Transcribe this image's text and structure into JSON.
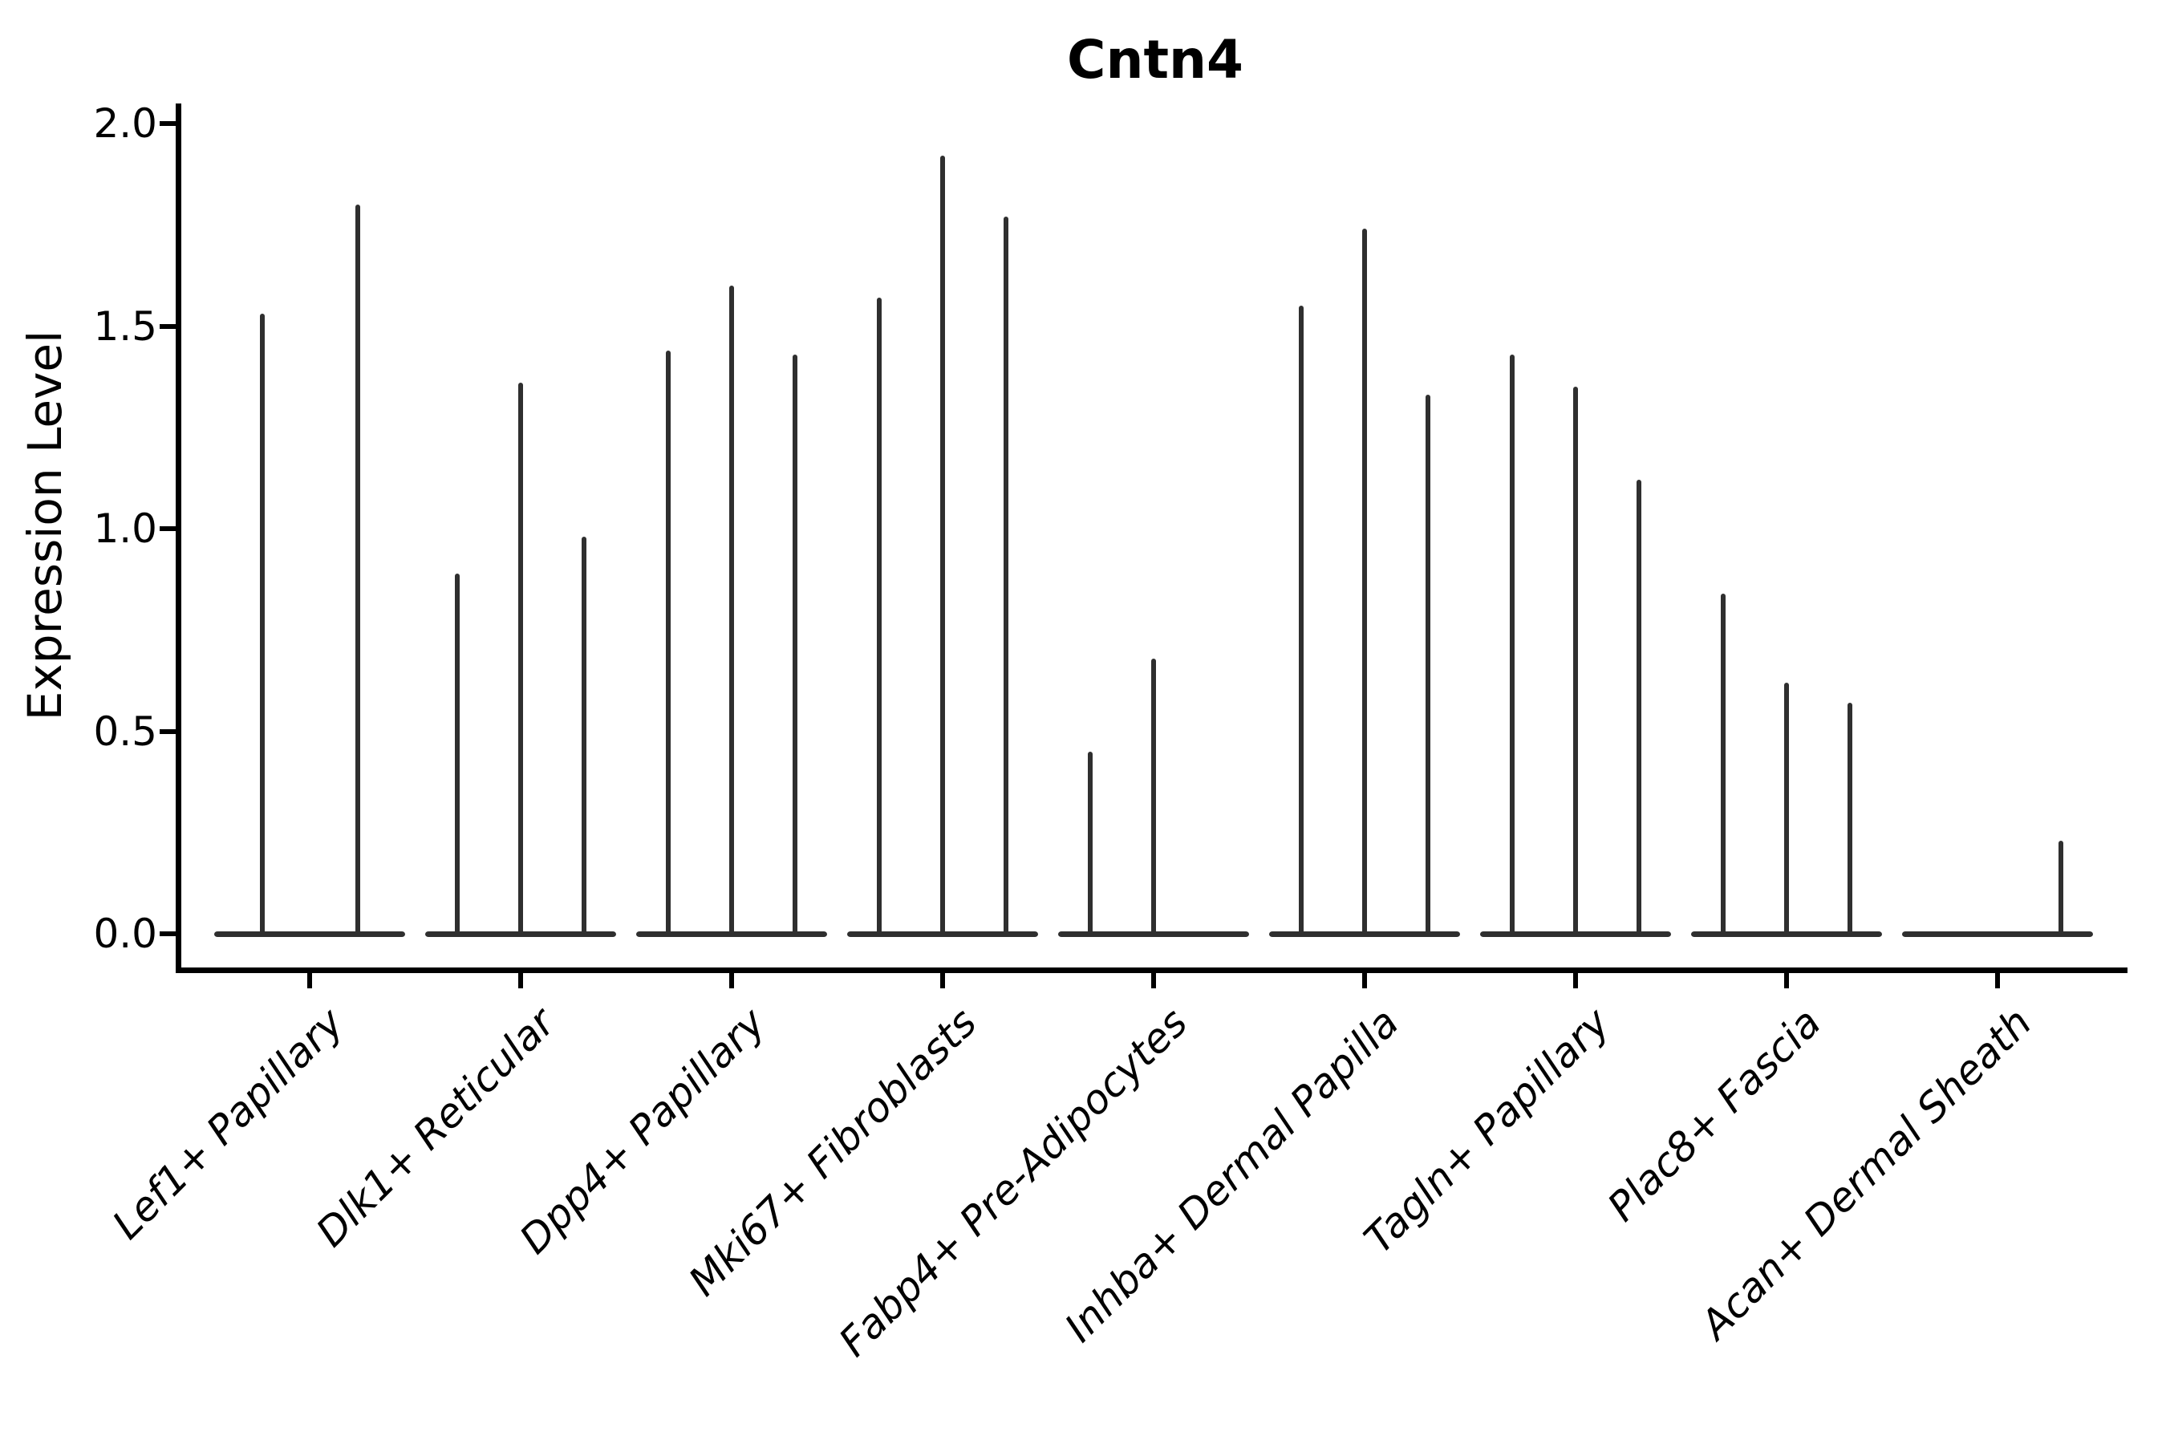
{
  "title": "Cntn4",
  "y_axis": {
    "label": "Expression Level",
    "tick_labels": [
      "0.0",
      "0.5",
      "1.0",
      "1.5",
      "2.0"
    ]
  },
  "colors": {
    "ink": "#000000",
    "violin": "#2f2f2f",
    "background": "#ffffff"
  },
  "chart_data": {
    "type": "violin",
    "title": "Cntn4",
    "xlabel": "",
    "ylabel": "Expression Level",
    "ylim": [
      0,
      2.05
    ],
    "yticks": [
      0.0,
      0.5,
      1.0,
      1.5,
      2.0
    ],
    "grid": false,
    "legend": "none",
    "x_tick_rotation_degrees": 45,
    "categories": [
      "Lef1+ Papillary",
      "Dlk1+ Reticular",
      "Dpp4+ Papillary",
      "Mki67+ Fibroblasts",
      "Fabp4+ Pre-Adipocytes",
      "Inhba+ Dermal Papilla",
      "Tagln+ Papillary",
      "Plac8+ Fascia",
      "Acan+ Dermal Sheath"
    ],
    "groups": [
      {
        "category": "Lef1+ Papillary",
        "violin_peaks": [
          1.53,
          1.8
        ]
      },
      {
        "category": "Dlk1+ Reticular",
        "violin_peaks": [
          0.89,
          1.36,
          0.98
        ]
      },
      {
        "category": "Dpp4+ Papillary",
        "violin_peaks": [
          1.44,
          1.6,
          1.43
        ]
      },
      {
        "category": "Mki67+ Fibroblasts",
        "violin_peaks": [
          1.57,
          1.92,
          1.77
        ]
      },
      {
        "category": "Fabp4+ Pre-Adipocytes",
        "violin_peaks": [
          0.45,
          0.68,
          0
        ]
      },
      {
        "category": "Inhba+ Dermal Papilla",
        "violin_peaks": [
          1.55,
          1.74,
          1.33
        ]
      },
      {
        "category": "Tagln+ Papillary",
        "violin_peaks": [
          1.43,
          1.35,
          1.12
        ]
      },
      {
        "category": "Plac8+ Fascia",
        "violin_peaks": [
          0.84,
          0.62,
          0.57
        ]
      },
      {
        "category": "Acan+ Dermal Sheath",
        "violin_peaks": [
          0,
          0,
          0.23
        ]
      }
    ]
  }
}
